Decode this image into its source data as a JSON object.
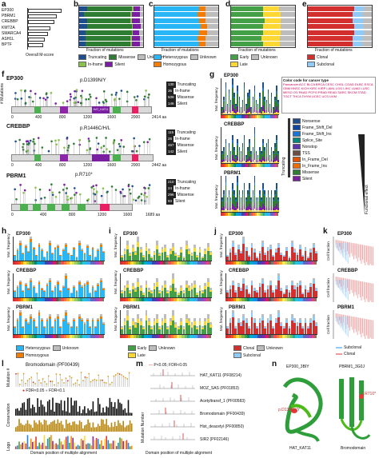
{
  "panel_letters": [
    "a",
    "b",
    "c",
    "d",
    "e",
    "f",
    "g",
    "h",
    "i",
    "j",
    "k",
    "l",
    "m",
    "n"
  ],
  "colors": {
    "truncating": "#1f4e8c",
    "inframe": "#8bc34a",
    "missense": "#2e7d32",
    "silent": "#7b1fa2",
    "unknown": "#bdbdbd",
    "heterozygous": "#1e88e5",
    "homozygous": "#f57c00",
    "early": "#43a047",
    "late": "#fdd835",
    "clonal": "#d32f2f",
    "subclonal": "#90caf9"
  },
  "panel_a": {
    "genes": [
      "EP300",
      "PBRM1",
      "CREBBP",
      "KMT2A",
      "SMARCA4",
      "ASH1L",
      "BPTF"
    ],
    "xlabel": "Overall M-score",
    "chart_data": {
      "type": "bar",
      "categories": [
        "EP300",
        "PBRM1",
        "CREBBP",
        "KMT2A",
        "SMARCA4",
        "ASH1L",
        "BPTF"
      ],
      "values": [
        1.0,
        0.86,
        0.78,
        0.66,
        0.6,
        0.5,
        0.45
      ],
      "xlabel": "Overall M-score",
      "ylabel": ""
    }
  },
  "panel_b": {
    "xlabel": "Fraction of mutations",
    "legend": [
      "Truncating",
      "Missense",
      "Unknown",
      "In-frame",
      "Silent"
    ],
    "chart_data": {
      "type": "bar",
      "stacked": true,
      "series": [
        {
          "name": "Truncating",
          "values": [
            0.12,
            0.08,
            0.12,
            0.12,
            0.1,
            0.1,
            0.1
          ]
        },
        {
          "name": "Missense",
          "values": [
            0.7,
            0.72,
            0.68,
            0.7,
            0.72,
            0.7,
            0.7
          ]
        },
        {
          "name": "In-frame",
          "values": [
            0.03,
            0.03,
            0.03,
            0.02,
            0.02,
            0.03,
            0.03
          ]
        },
        {
          "name": "Silent",
          "values": [
            0.1,
            0.12,
            0.12,
            0.12,
            0.1,
            0.12,
            0.12
          ]
        },
        {
          "name": "Unknown",
          "values": [
            0.05,
            0.05,
            0.05,
            0.04,
            0.06,
            0.05,
            0.05
          ]
        }
      ]
    }
  },
  "panel_c": {
    "xlabel": "Fraction of mutations",
    "legend": [
      "Heterozygous",
      "Homozygous",
      "Unknown"
    ],
    "chart_data": {
      "type": "bar",
      "stacked": true,
      "series": [
        {
          "name": "Heterozygous",
          "values": [
            0.7,
            0.68,
            0.7,
            0.72,
            0.7,
            0.68,
            0.7
          ]
        },
        {
          "name": "Homozygous",
          "values": [
            0.1,
            0.12,
            0.1,
            0.1,
            0.12,
            0.12,
            0.1
          ]
        },
        {
          "name": "Unknown",
          "values": [
            0.2,
            0.2,
            0.2,
            0.18,
            0.18,
            0.2,
            0.2
          ]
        }
      ]
    }
  },
  "panel_d": {
    "xlabel": "Fraction of mutations",
    "legend": [
      "Early",
      "Unknown",
      "Late"
    ],
    "chart_data": {
      "type": "bar",
      "stacked": true,
      "series": [
        {
          "name": "Early",
          "values": [
            0.5,
            0.5,
            0.52,
            0.5,
            0.5,
            0.48,
            0.5
          ]
        },
        {
          "name": "Late",
          "values": [
            0.25,
            0.28,
            0.25,
            0.28,
            0.27,
            0.28,
            0.26
          ]
        },
        {
          "name": "Unknown",
          "values": [
            0.25,
            0.22,
            0.23,
            0.22,
            0.23,
            0.24,
            0.24
          ]
        }
      ]
    }
  },
  "panel_e": {
    "xlabel": "Fraction of mutations",
    "legend": [
      "Clonal",
      "Subclonal"
    ],
    "chart_data": {
      "type": "bar",
      "stacked": true,
      "series": [
        {
          "name": "Clonal",
          "values": [
            0.72,
            0.7,
            0.7,
            0.72,
            0.72,
            0.7,
            0.7
          ]
        },
        {
          "name": "Subclonal",
          "values": [
            0.15,
            0.15,
            0.16,
            0.14,
            0.15,
            0.15,
            0.15
          ]
        },
        {
          "name": "Unknown",
          "values": [
            0.13,
            0.15,
            0.14,
            0.14,
            0.13,
            0.15,
            0.15
          ]
        }
      ]
    }
  },
  "panel_f": {
    "proteins": [
      {
        "gene": "EP300",
        "hotspot": "p.D1399N/Y",
        "length": "2414 aa",
        "ticks": [
          "0",
          "400",
          "800",
          "1200",
          "1600",
          "2000"
        ],
        "counts": [
          "130",
          "36",
          "509",
          "146"
        ],
        "domain": "HAT_KAT11"
      },
      {
        "gene": "CREBBP",
        "hotspot": "p.R1446C/H/L",
        "length": "2442 aa",
        "ticks": [
          "0",
          "400",
          "800",
          "1200",
          "1600",
          "2000"
        ],
        "counts": [
          "115",
          "28",
          "467",
          "142"
        ],
        "domain": ""
      },
      {
        "gene": "PBRM1",
        "hotspot": "p.R710*",
        "length": "1689 aa",
        "ticks": [
          "0",
          "400",
          "800",
          "1200",
          "1600"
        ],
        "counts": [
          "210",
          "24",
          "296",
          "93"
        ],
        "domain": ""
      }
    ],
    "legend": [
      "Truncating",
      "In-frame",
      "Missense",
      "Silent"
    ],
    "ylabel": "# Mutations"
  },
  "panel_g": {
    "genes": [
      "EP300",
      "CREBBP",
      "PBRM1"
    ],
    "ylabel": "Mut. frequency",
    "color_code_title": "Color code for cancer type",
    "cancer_types": "Pancancer  ACC  BLCA  BRCA  CESC  CHOL  COAD  DLBC  ESCA  GBM  HNSC  KICH  KIRC  KIRP  LAML  LGG  LIHC  LUAD  LUSC  MESO  OV  PAAD  PCPG  PRAD  READ  SARC  SKCM  STAD  TGCT  THCA  THYM  UCEC  UCS  UVM",
    "effect_legend": [
      "Nonsense",
      "Frame_Shift_Del",
      "Frame_Shift_Ins",
      "Splice_Site",
      "Nonstop",
      "TSS",
      "In_Frame_Del",
      "In_Frame_Ins",
      "Missense",
      "Silent"
    ],
    "truncating_label": "Truncating",
    "functional_label": "Functional effect",
    "chart_data": {
      "type": "bar",
      "series": [
        {
          "name": "EP300",
          "values": [
            2,
            5,
            9,
            3,
            7,
            4,
            10,
            6,
            3,
            8,
            5,
            2,
            4,
            9,
            3,
            6,
            7,
            2,
            5,
            8,
            4,
            3,
            6,
            2,
            9,
            5,
            4,
            7,
            3,
            6,
            2,
            5,
            8,
            4
          ]
        },
        {
          "name": "CREBBP",
          "values": [
            3,
            4,
            6,
            2,
            5,
            3,
            7,
            4,
            2,
            6,
            4,
            3,
            5,
            7,
            2,
            4,
            6,
            3,
            4,
            9,
            3,
            2,
            4,
            3,
            6,
            4,
            5,
            6,
            2,
            4,
            3,
            5,
            7,
            3
          ]
        },
        {
          "name": "PBRM1",
          "values": [
            2,
            3,
            5,
            2,
            3,
            2,
            4,
            3,
            2,
            5,
            3,
            2,
            3,
            4,
            2,
            3,
            4,
            2,
            3,
            5,
            2,
            2,
            3,
            2,
            4,
            3,
            2,
            3,
            2,
            3,
            2,
            3,
            4,
            2
          ]
        }
      ]
    }
  },
  "panel_h": {
    "genes": [
      "EP300",
      "CREBBP",
      "PBRM1"
    ],
    "ylabel": "Mut. frequency",
    "legend": [
      "Heterozygous",
      "Homozygous",
      "Unknown"
    ],
    "chart_data": {
      "type": "bar",
      "series": [
        {
          "name": "EP300",
          "values": [
            3,
            6,
            10,
            4,
            8,
            5,
            12,
            7,
            3,
            9,
            6,
            2,
            5,
            10,
            4,
            7,
            8,
            3,
            6,
            9,
            4,
            3,
            7,
            2,
            10,
            6,
            4,
            8,
            3,
            7,
            2,
            6,
            9,
            5
          ]
        },
        {
          "name": "CREBBP",
          "values": [
            3,
            5,
            7,
            3,
            6,
            4,
            8,
            5,
            2,
            7,
            4,
            3,
            6,
            8,
            3,
            5,
            7,
            3,
            5,
            10,
            4,
            2,
            5,
            3,
            7,
            5,
            6,
            7,
            2,
            5,
            3,
            6,
            8,
            4
          ]
        },
        {
          "name": "PBRM1",
          "values": [
            2,
            4,
            6,
            2,
            4,
            3,
            5,
            4,
            2,
            6,
            4,
            2,
            4,
            5,
            2,
            4,
            5,
            2,
            4,
            6,
            3,
            2,
            4,
            2,
            5,
            4,
            3,
            4,
            2,
            4,
            2,
            4,
            5,
            3
          ]
        }
      ]
    }
  },
  "panel_i": {
    "genes": [
      "EP300",
      "CREBBP",
      "PBRM1"
    ],
    "ylabel": "Mut. frequency",
    "legend": [
      "Early",
      "Unknown",
      "Late"
    ],
    "chart_data": {
      "type": "bar",
      "series": [
        {
          "name": "EP300",
          "values": [
            3,
            6,
            10,
            4,
            8,
            5,
            12,
            7,
            3,
            9,
            6,
            2,
            5,
            10,
            4,
            7,
            8,
            3,
            6,
            9,
            4,
            3,
            7,
            2,
            10,
            6,
            4,
            8,
            3,
            7,
            2,
            6,
            9,
            5
          ]
        },
        {
          "name": "CREBBP",
          "values": [
            3,
            5,
            7,
            3,
            6,
            4,
            8,
            5,
            2,
            7,
            4,
            3,
            6,
            8,
            3,
            5,
            7,
            3,
            5,
            10,
            4,
            2,
            5,
            3,
            7,
            5,
            6,
            7,
            2,
            5,
            3,
            6,
            8,
            4
          ]
        },
        {
          "name": "PBRM1",
          "values": [
            2,
            4,
            6,
            2,
            4,
            3,
            5,
            4,
            2,
            6,
            4,
            2,
            4,
            5,
            2,
            4,
            5,
            2,
            4,
            6,
            3,
            2,
            4,
            2,
            5,
            4,
            3,
            4,
            2,
            4,
            2,
            4,
            5,
            3
          ]
        }
      ]
    }
  },
  "panel_j": {
    "genes": [
      "EP300",
      "CREBBP",
      "PBRM1"
    ],
    "ylabel": "Mut. frequency",
    "legend": [
      "Clonal",
      "Unknown",
      "Subclonal"
    ],
    "chart_data": {
      "type": "bar",
      "series": [
        {
          "name": "EP300",
          "values": [
            3,
            6,
            10,
            4,
            8,
            5,
            12,
            7,
            3,
            9,
            6,
            2,
            5,
            10,
            4,
            7,
            8,
            3,
            6,
            9,
            4,
            3,
            7,
            2,
            10,
            6,
            4,
            8,
            3,
            7,
            2,
            6,
            9,
            5
          ]
        },
        {
          "name": "CREBBP",
          "values": [
            3,
            5,
            7,
            3,
            6,
            4,
            8,
            5,
            2,
            7,
            4,
            3,
            6,
            8,
            3,
            5,
            7,
            3,
            5,
            10,
            4,
            2,
            5,
            3,
            7,
            5,
            6,
            7,
            2,
            5,
            3,
            6,
            8,
            4
          ]
        },
        {
          "name": "PBRM1",
          "values": [
            2,
            4,
            6,
            2,
            4,
            3,
            5,
            4,
            2,
            6,
            4,
            2,
            4,
            5,
            2,
            4,
            5,
            2,
            4,
            6,
            3,
            2,
            4,
            2,
            5,
            4,
            3,
            4,
            2,
            4,
            2,
            4,
            5,
            3
          ]
        }
      ]
    }
  },
  "panel_k": {
    "genes": [
      "EP300",
      "CREBBP",
      "PBRM1"
    ],
    "ylabel": "Cell fraction",
    "legend": [
      "Subclonal",
      "Clonal"
    ],
    "yticks": [
      "1.0",
      "0.5",
      "0"
    ]
  },
  "panel_l": {
    "title": "Bromodomain (PF00439)",
    "fdr_label": "FDR<0.05",
    "fdr_label2": "FDR<0.1",
    "row_labels": [
      "Mutation #",
      "Conservation",
      "Logo"
    ],
    "xlabel": "Domain position of multiple alignment"
  },
  "panel_m": {
    "legend": "P<0.05; FDR<0.05",
    "ylabel": "Mutation Number",
    "xlabel": "Domain position of multiple alignment",
    "domains": [
      "HAT_KAT11 (PF08214)",
      "MOZ_SAS (PF01853)",
      "Acetyltransf_1 (PF00583)",
      "Bromodomain (PF00439)",
      "Hist_deacetyl (PF00850)",
      "SIR2 (PF02146)"
    ]
  },
  "panel_n": {
    "structures": [
      {
        "title": "EP300_3BIY",
        "label": "HAT_KAT11",
        "site": "p.D1399N/Y"
      },
      {
        "title": "PBRM1_3G0J",
        "label": "Bromodomain",
        "site": "p.R710*"
      }
    ]
  }
}
